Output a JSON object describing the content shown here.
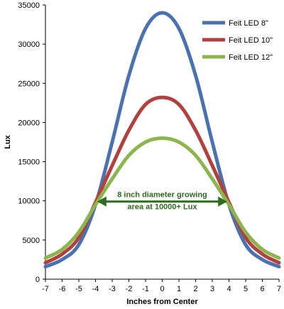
{
  "chart_data": {
    "type": "line",
    "xlabel": "Inches from Center",
    "ylabel": "Lux",
    "xlim": [
      -7,
      7
    ],
    "ylim": [
      0,
      35000
    ],
    "x_ticks": [
      "-7",
      "-6",
      "-5",
      "-4",
      "-3",
      "-2",
      "-1",
      "0",
      "1",
      "2",
      "3",
      "4",
      "5",
      "6",
      "7"
    ],
    "y_ticks": [
      "0",
      "5000",
      "10000",
      "15000",
      "20000",
      "25000",
      "30000",
      "35000"
    ],
    "grid": false,
    "legend_position": "top-right",
    "series": [
      {
        "name": "Feit LED 8\"",
        "color": "#4a72b0",
        "x": [
          -7,
          -6,
          -5,
          -4,
          -3,
          -2,
          -1,
          0,
          1,
          2,
          3,
          4,
          5,
          6,
          7
        ],
        "y": [
          1600,
          2500,
          4400,
          9500,
          17500,
          26000,
          32000,
          34000,
          32000,
          26000,
          17500,
          9500,
          4400,
          2500,
          1600
        ]
      },
      {
        "name": "Feit LED 10\"",
        "color": "#b0413e",
        "x": [
          -7,
          -6,
          -5,
          -4,
          -3,
          -2,
          -1,
          0,
          1,
          2,
          3,
          4,
          5,
          6,
          7
        ],
        "y": [
          2100,
          3200,
          5300,
          9800,
          14500,
          19000,
          22300,
          23200,
          22300,
          19000,
          14500,
          9800,
          5300,
          3200,
          2100
        ]
      },
      {
        "name": "Feit LED 12\"",
        "color": "#8db54e",
        "x": [
          -7,
          -6,
          -5,
          -4,
          -3,
          -2,
          -1,
          0,
          1,
          2,
          3,
          4,
          5,
          6,
          7
        ],
        "y": [
          2700,
          3800,
          6000,
          9500,
          12800,
          15800,
          17500,
          18000,
          17500,
          15800,
          12800,
          9500,
          6000,
          3800,
          2700
        ]
      }
    ],
    "annotation": {
      "lines": [
        "8 inch diameter growing",
        "area at 10000+ Lux"
      ],
      "color": "#2e6b1f",
      "arrow_from_x": -3.9,
      "arrow_to_x": 3.9,
      "arrow_y": 10000
    }
  }
}
